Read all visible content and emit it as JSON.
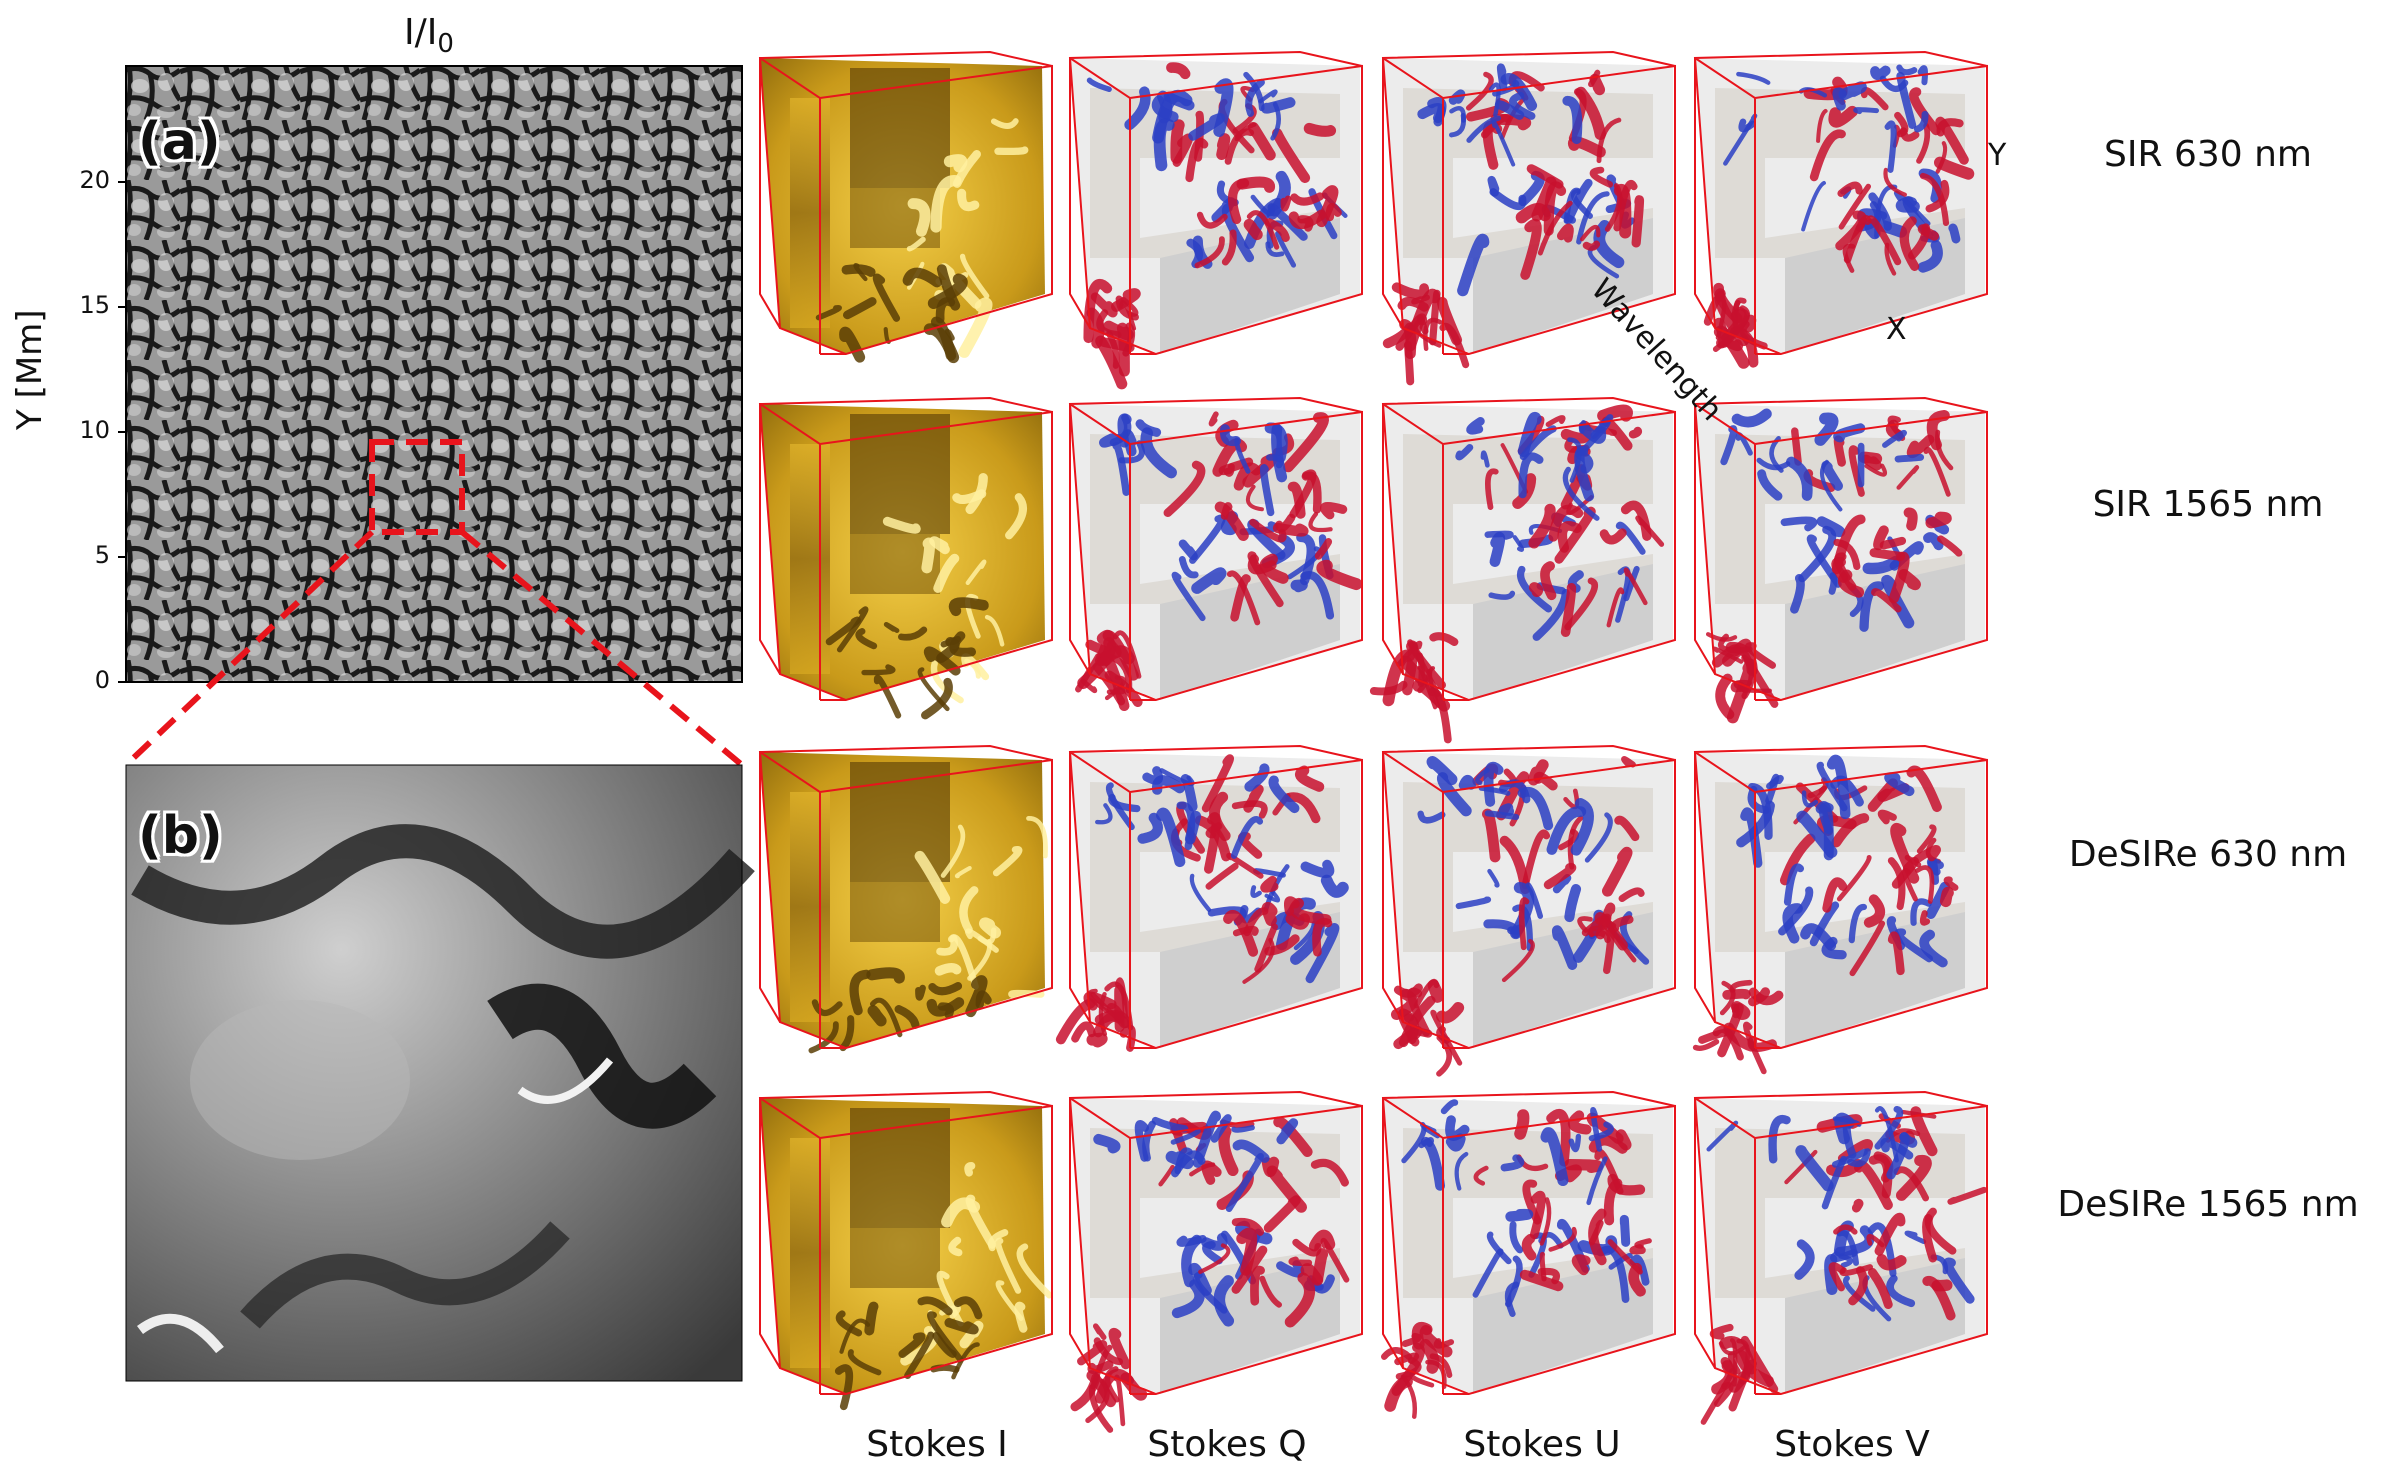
{
  "panel_a": {
    "title": "I/I",
    "title_sub": "0",
    "tag": "(a)",
    "ylabel": "Y [Mm]",
    "yticks": [
      "20",
      "15",
      "10",
      "5",
      "0"
    ]
  },
  "panel_b": {
    "tag": "(b)"
  },
  "rows": [
    {
      "label": "SIR 630 nm"
    },
    {
      "label": "SIR 1565 nm"
    },
    {
      "label": "DeSIRe 630 nm"
    },
    {
      "label": "DeSIRe 1565 nm"
    }
  ],
  "columns": [
    {
      "label": "Stokes I"
    },
    {
      "label": "Stokes Q"
    },
    {
      "label": "Stokes U"
    },
    {
      "label": "Stokes V"
    }
  ],
  "axes3d": {
    "y": "Y",
    "x": "X",
    "wavelength": "Wavelength"
  },
  "colors": {
    "frame": "#e8141c",
    "stokes_i_gold": "#c99a1a",
    "positive": "#c8102e",
    "negative": "#2b3fc4",
    "cube_gray": "#d9d9d9"
  }
}
